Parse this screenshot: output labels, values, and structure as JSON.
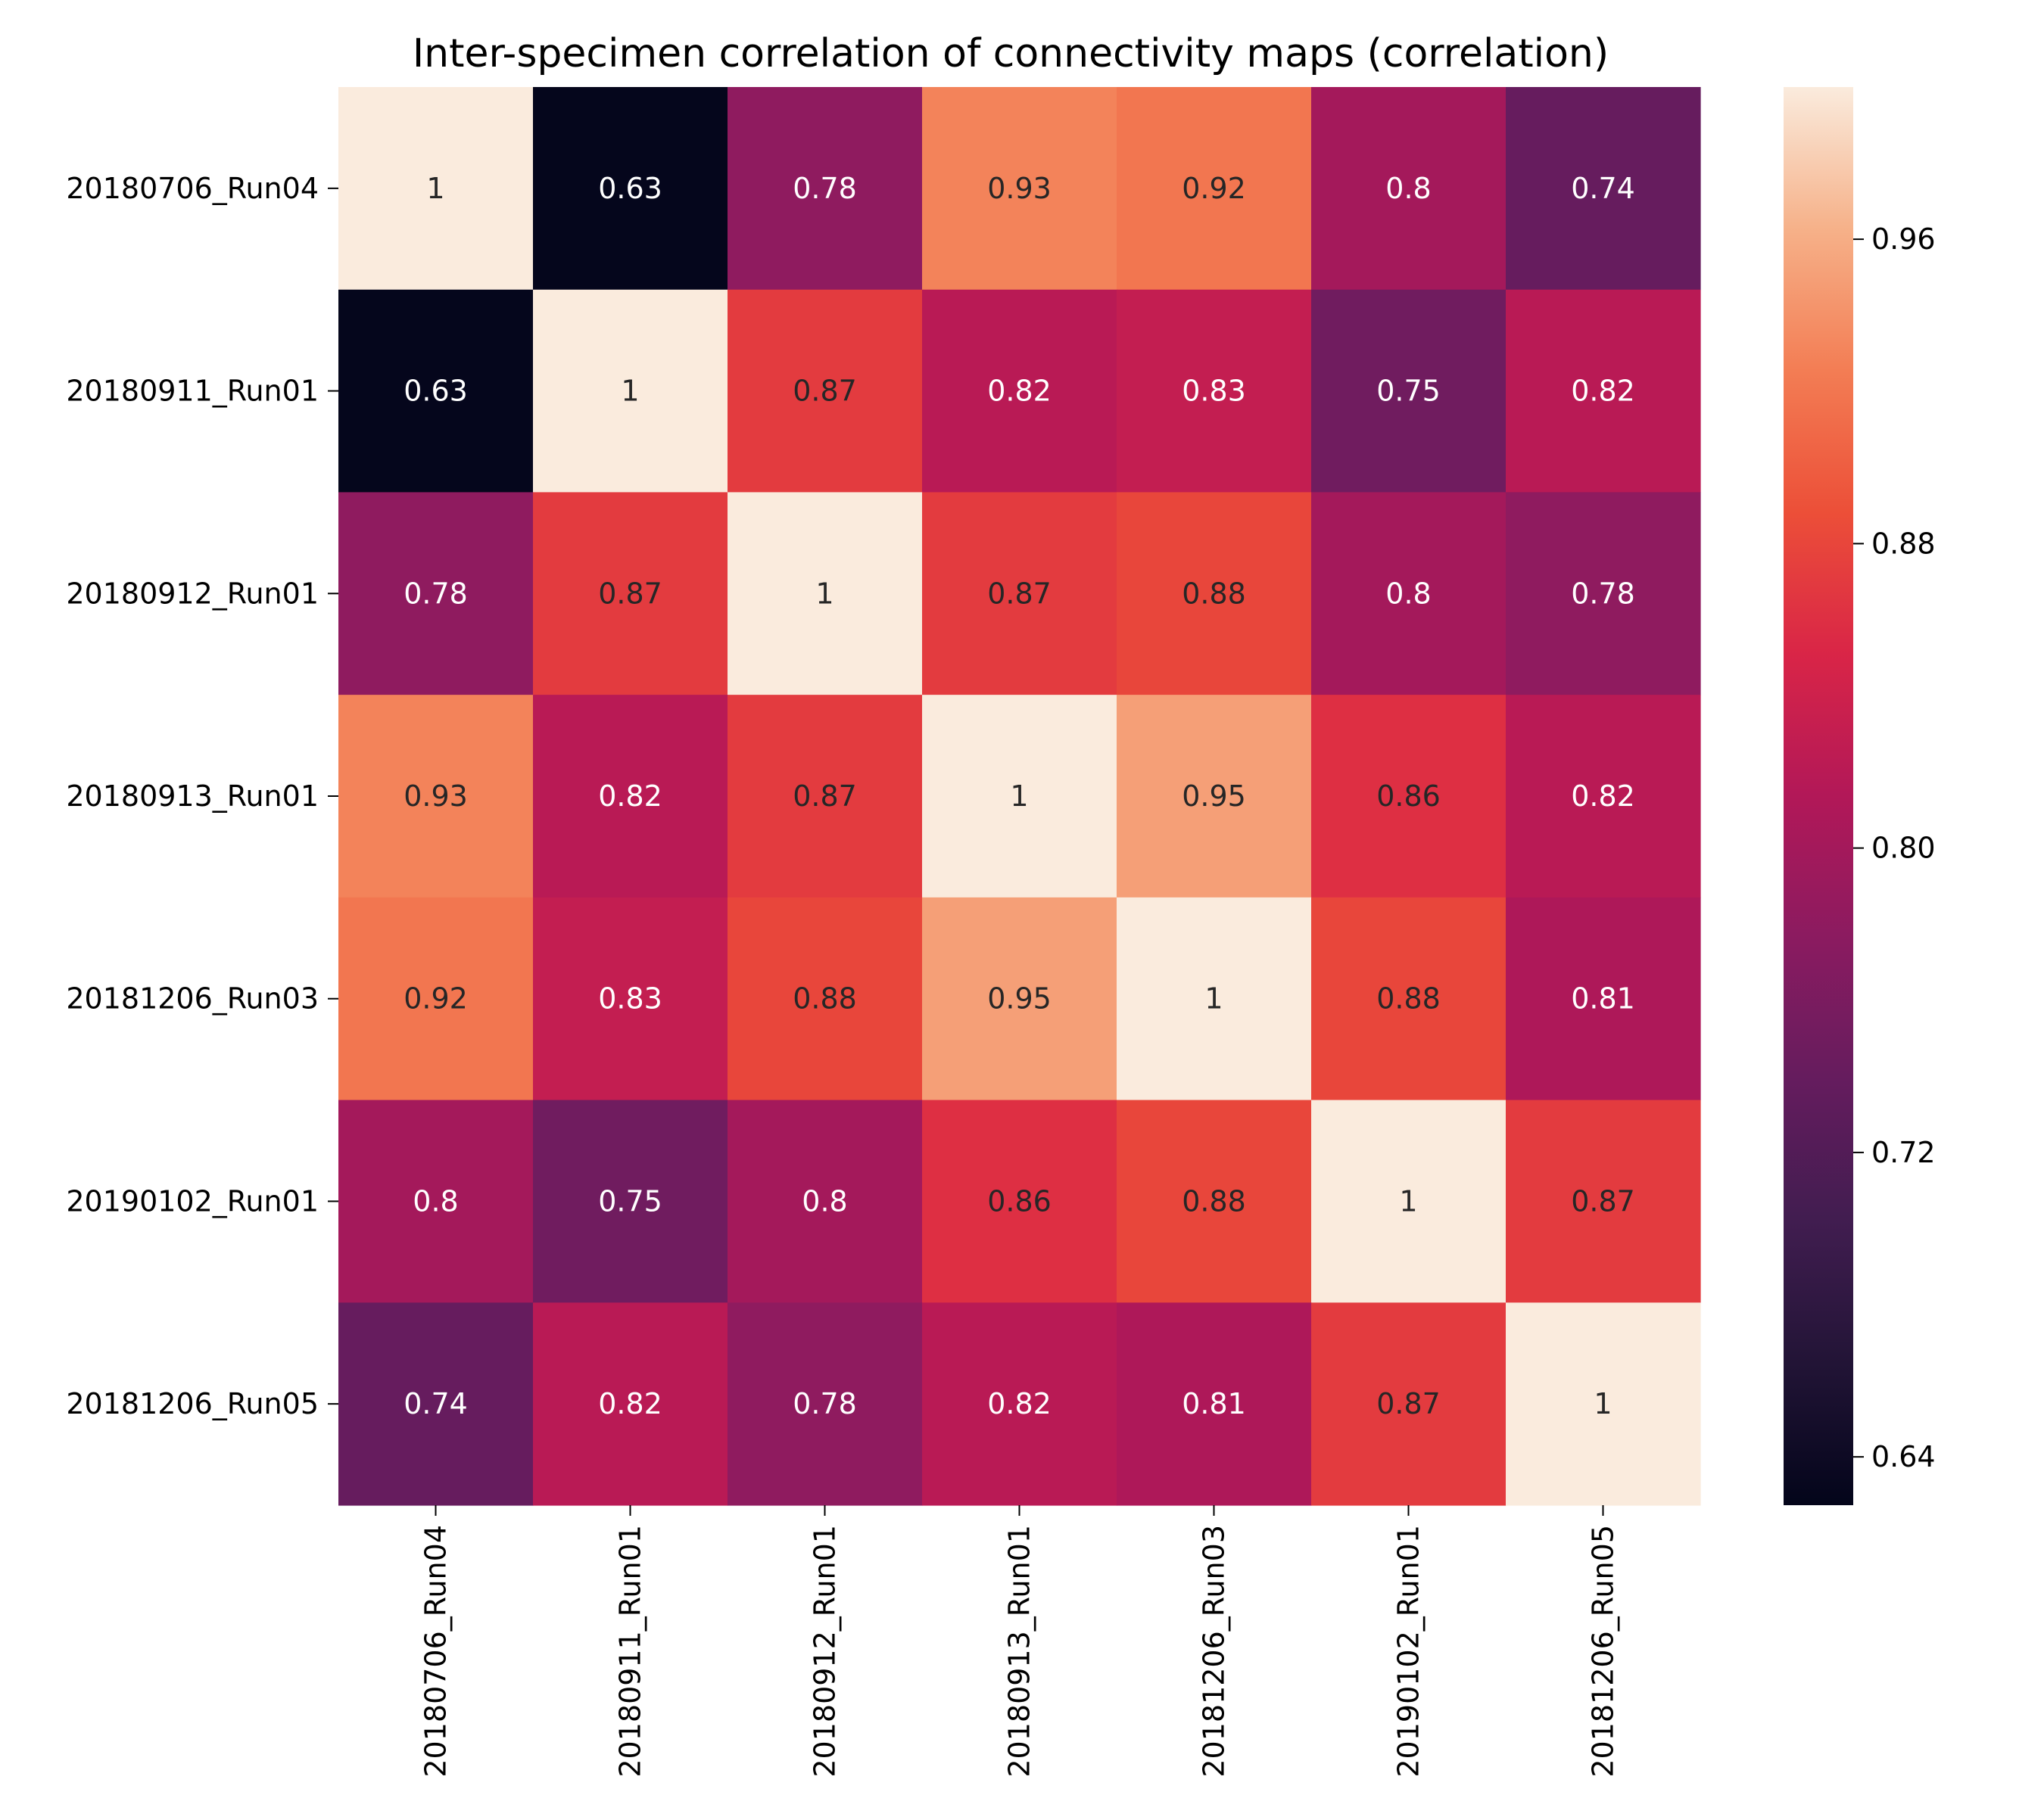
{
  "chart_data": {
    "type": "heatmap",
    "title": "Inter-specimen correlation of connectivity maps (correlation)",
    "xlabel": "",
    "ylabel": "",
    "row_labels": [
      "20180706_Run04",
      "20180911_Run01",
      "20180912_Run01",
      "20180913_Run01",
      "20181206_Run03",
      "20190102_Run01",
      "20181206_Run05"
    ],
    "col_labels": [
      "20180706_Run04",
      "20180911_Run01",
      "20180912_Run01",
      "20180913_Run01",
      "20181206_Run03",
      "20190102_Run01",
      "20181206_Run05"
    ],
    "values": [
      [
        1,
        0.63,
        0.78,
        0.93,
        0.92,
        0.8,
        0.74
      ],
      [
        0.63,
        1,
        0.87,
        0.82,
        0.83,
        0.75,
        0.82
      ],
      [
        0.78,
        0.87,
        1,
        0.87,
        0.88,
        0.8,
        0.78
      ],
      [
        0.93,
        0.82,
        0.87,
        1,
        0.95,
        0.86,
        0.82
      ],
      [
        0.92,
        0.83,
        0.88,
        0.95,
        1,
        0.88,
        0.81
      ],
      [
        0.8,
        0.75,
        0.8,
        0.86,
        0.88,
        1,
        0.87
      ],
      [
        0.74,
        0.82,
        0.78,
        0.82,
        0.81,
        0.87,
        1
      ]
    ],
    "annotations": [
      [
        "1",
        "0.63",
        "0.78",
        "0.93",
        "0.92",
        "0.8",
        "0.74"
      ],
      [
        "0.63",
        "1",
        "0.87",
        "0.82",
        "0.83",
        "0.75",
        "0.82"
      ],
      [
        "0.78",
        "0.87",
        "1",
        "0.87",
        "0.88",
        "0.8",
        "0.78"
      ],
      [
        "0.93",
        "0.82",
        "0.87",
        "1",
        "0.95",
        "0.86",
        "0.82"
      ],
      [
        "0.92",
        "0.83",
        "0.88",
        "0.95",
        "1",
        "0.88",
        "0.81"
      ],
      [
        "0.8",
        "0.75",
        "0.8",
        "0.86",
        "0.88",
        "1",
        "0.87"
      ],
      [
        "0.74",
        "0.82",
        "0.78",
        "0.82",
        "0.81",
        "0.87",
        "1"
      ]
    ],
    "colorbar": {
      "colormap": "rocket",
      "range": [
        0.6273,
        1.0
      ],
      "ticks": [
        0.64,
        0.72,
        0.8,
        0.88,
        0.96
      ],
      "tick_labels": [
        "0.64",
        "0.72",
        "0.80",
        "0.88",
        "0.96"
      ]
    },
    "grid": false,
    "legend": "colorbar-right"
  }
}
